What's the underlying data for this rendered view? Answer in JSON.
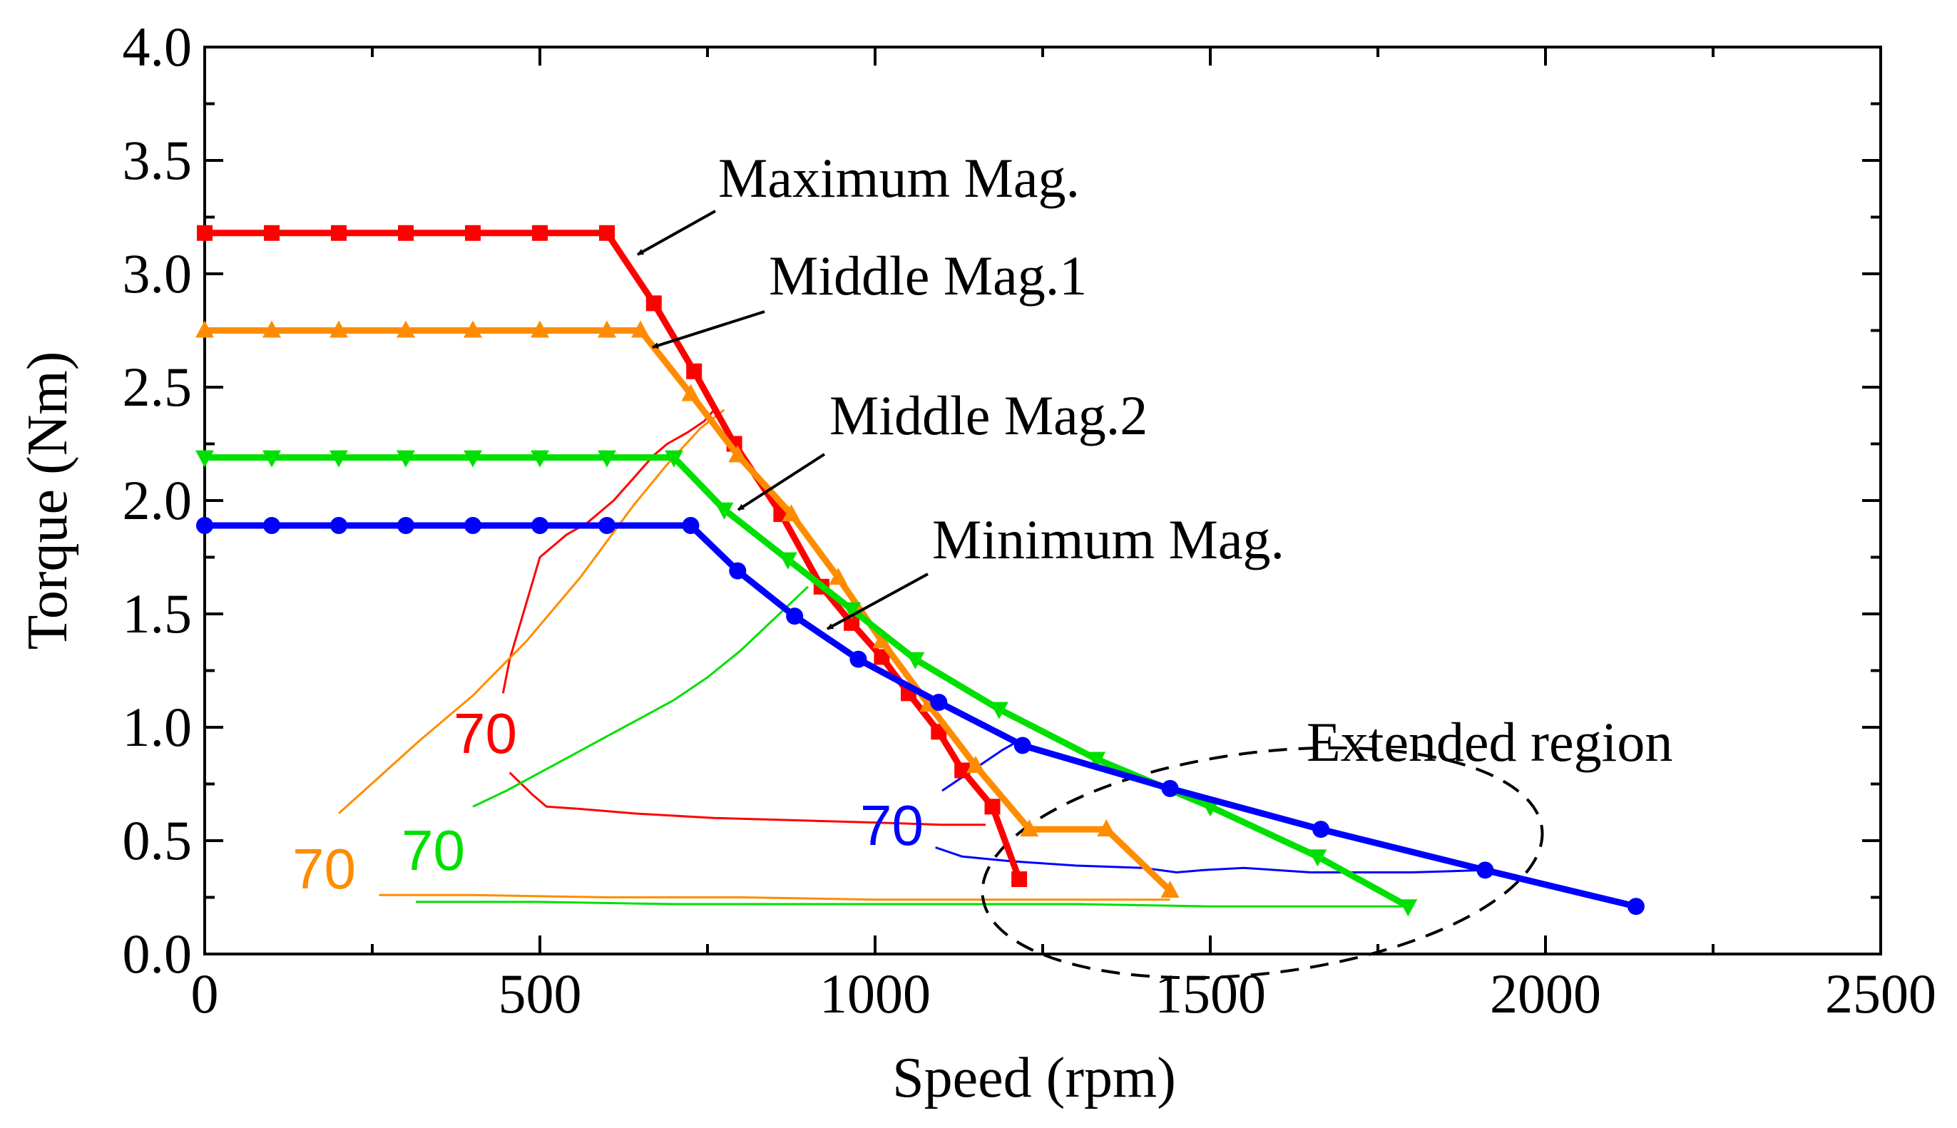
{
  "chart_data": {
    "type": "line",
    "title": "",
    "xlabel": "Speed (rpm)",
    "ylabel": "Torque (Nm)",
    "xlim": [
      0,
      2500
    ],
    "ylim": [
      0,
      4.0
    ],
    "xticks": [
      "0",
      "500",
      "1000",
      "1500",
      "2000",
      "2500"
    ],
    "yticks": [
      "0.0",
      "0.5",
      "1.0",
      "1.5",
      "2.0",
      "2.5",
      "3.0",
      "3.5",
      "4.0"
    ],
    "series": [
      {
        "name": "Maximum Mag.",
        "color": "#ff0000",
        "marker": "square",
        "x": [
          0,
          100,
          200,
          300,
          400,
          500,
          600,
          670,
          730,
          790,
          860,
          920,
          965,
          1010,
          1050,
          1095,
          1130,
          1175,
          1215
        ],
        "y": [
          3.18,
          3.18,
          3.18,
          3.18,
          3.18,
          3.18,
          3.18,
          2.87,
          2.57,
          2.25,
          1.94,
          1.62,
          1.46,
          1.31,
          1.15,
          0.98,
          0.81,
          0.65,
          0.33
        ]
      },
      {
        "name": "Middle Mag.1",
        "color": "#ff8c00",
        "marker": "triangle-up",
        "x": [
          0,
          100,
          200,
          300,
          400,
          500,
          600,
          650,
          725,
          795,
          875,
          945,
          1010,
          1080,
          1150,
          1230,
          1345,
          1440
        ],
        "y": [
          2.75,
          2.75,
          2.75,
          2.75,
          2.75,
          2.75,
          2.75,
          2.75,
          2.47,
          2.2,
          1.94,
          1.66,
          1.38,
          1.1,
          0.83,
          0.55,
          0.55,
          0.28
        ]
      },
      {
        "name": "Middle Mag.2",
        "color": "#00e000",
        "marker": "triangle-down",
        "x": [
          0,
          100,
          200,
          300,
          400,
          500,
          600,
          700,
          775,
          870,
          965,
          1060,
          1185,
          1330,
          1500,
          1660,
          1795
        ],
        "y": [
          2.19,
          2.19,
          2.19,
          2.19,
          2.19,
          2.19,
          2.19,
          2.19,
          1.96,
          1.74,
          1.52,
          1.3,
          1.08,
          0.86,
          0.65,
          0.43,
          0.21
        ]
      },
      {
        "name": "Minimum Mag.",
        "color": "#0000ff",
        "marker": "circle",
        "x": [
          0,
          100,
          200,
          300,
          400,
          500,
          600,
          725,
          795,
          880,
          975,
          1095,
          1220,
          1440,
          1665,
          1910,
          2135
        ],
        "y": [
          1.89,
          1.89,
          1.89,
          1.89,
          1.89,
          1.89,
          1.89,
          1.89,
          1.69,
          1.49,
          1.3,
          1.11,
          0.92,
          0.73,
          0.55,
          0.37,
          0.21
        ]
      }
    ],
    "efficiency_contours": [
      {
        "label": "70",
        "color": "#ff0000",
        "x": [
          445,
          455,
          475,
          500,
          540,
          570,
          590,
          610,
          625,
          640,
          655,
          670,
          690,
          720,
          745,
          760
        ],
        "y": [
          1.15,
          1.3,
          1.5,
          1.75,
          1.85,
          1.9,
          1.95,
          2.0,
          2.05,
          2.1,
          2.15,
          2.2,
          2.25,
          2.3,
          2.35,
          2.4
        ]
      },
      {
        "label": "70",
        "color": "#ff0000",
        "x": [
          455,
          490,
          510,
          560,
          640,
          760,
          880,
          1000,
          1100,
          1165
        ],
        "y": [
          0.8,
          0.7,
          0.65,
          0.64,
          0.62,
          0.6,
          0.59,
          0.58,
          0.57,
          0.57
        ]
      },
      {
        "label": "70",
        "color": "#ff8c00",
        "x": [
          200,
          230,
          260,
          290,
          320,
          360,
          400,
          440,
          480,
          520,
          560,
          600,
          640,
          690,
          740,
          775
        ],
        "y": [
          0.62,
          0.7,
          0.78,
          0.86,
          0.94,
          1.04,
          1.14,
          1.26,
          1.38,
          1.52,
          1.66,
          1.82,
          1.98,
          2.16,
          2.32,
          2.4
        ]
      },
      {
        "label": "70",
        "color": "#ff8c00",
        "x": [
          260,
          400,
          600,
          800,
          1000,
          1200,
          1440
        ],
        "y": [
          0.26,
          0.26,
          0.25,
          0.25,
          0.24,
          0.24,
          0.24
        ]
      },
      {
        "label": "70",
        "color": "#00e000",
        "x": [
          400,
          450,
          500,
          550,
          600,
          650,
          700,
          750,
          800,
          850,
          900
        ],
        "y": [
          0.65,
          0.72,
          0.8,
          0.88,
          0.96,
          1.04,
          1.12,
          1.22,
          1.34,
          1.48,
          1.62
        ]
      },
      {
        "label": "70",
        "color": "#00e000",
        "x": [
          315,
          500,
          700,
          900,
          1100,
          1300,
          1500,
          1700,
          1795
        ],
        "y": [
          0.23,
          0.23,
          0.22,
          0.22,
          0.22,
          0.22,
          0.21,
          0.21,
          0.21
        ]
      },
      {
        "label": "70",
        "color": "#0000ff",
        "x": [
          1100,
          1130,
          1160,
          1190,
          1220
        ],
        "y": [
          0.72,
          0.78,
          0.84,
          0.9,
          0.95
        ]
      },
      {
        "label": "70",
        "color": "#0000ff",
        "x": [
          1090,
          1130,
          1200,
          1300,
          1400,
          1450,
          1490,
          1550,
          1650,
          1800,
          1910
        ],
        "y": [
          0.47,
          0.43,
          0.41,
          0.39,
          0.38,
          0.36,
          0.37,
          0.38,
          0.36,
          0.36,
          0.37
        ]
      }
    ],
    "annotations": [
      {
        "text": "Maximum Mag.",
        "arrow_to": [
          645,
          3.12
        ]
      },
      {
        "text": "Middle Mag.1",
        "arrow_to": [
          660,
          2.7
        ]
      },
      {
        "text": "Middle Mag.2",
        "arrow_to": [
          790,
          1.97
        ]
      },
      {
        "text": "Minimum Mag.",
        "arrow_to": [
          915,
          1.46
        ]
      },
      {
        "text": "Extended region"
      }
    ]
  }
}
